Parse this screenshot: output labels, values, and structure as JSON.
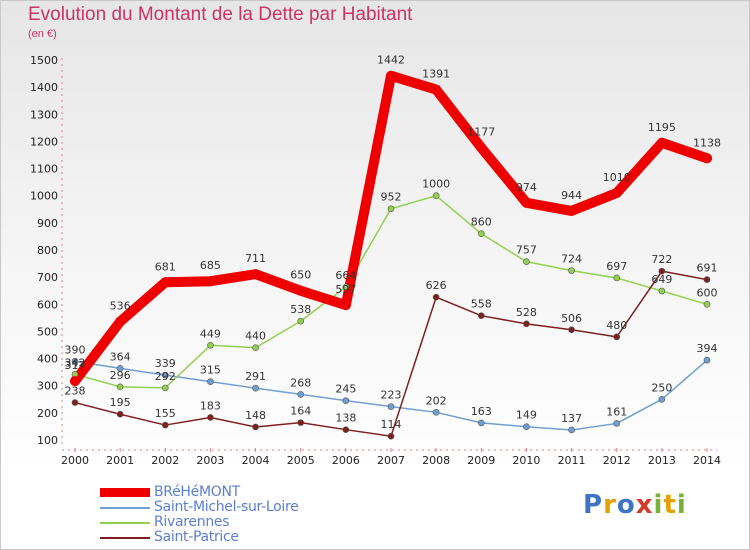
{
  "header": {
    "title": "Evolution du Montant de la Dette par Habitant",
    "subtitle": "(en €)"
  },
  "brand": {
    "name": "Proxiti",
    "letters": [
      {
        "ch": "P",
        "color": "#3f73c4"
      },
      {
        "ch": "r",
        "color": "#e5a100"
      },
      {
        "ch": "o",
        "color": "#3f73c4"
      },
      {
        "ch": "x",
        "color": "#d23a2a"
      },
      {
        "ch": "i",
        "color": "#79b13a"
      },
      {
        "ch": "t",
        "color": "#e5a100"
      },
      {
        "ch": "i",
        "color": "#79b13a"
      }
    ]
  },
  "chart_data": {
    "type": "line",
    "title": "Evolution du Montant de la Dette par Habitant",
    "subtitle": "(en €)",
    "xlabel": "",
    "ylabel": "",
    "x": [
      2000,
      2001,
      2002,
      2003,
      2004,
      2005,
      2006,
      2007,
      2008,
      2009,
      2010,
      2011,
      2012,
      2013,
      2014
    ],
    "ylim": [
      100,
      1500
    ],
    "yticks": [
      100,
      200,
      300,
      400,
      500,
      600,
      700,
      800,
      900,
      1000,
      1100,
      1200,
      1300,
      1400,
      1500
    ],
    "grid": false,
    "legend_position": "bottom-left",
    "series": [
      {
        "name": "BRéHéMONT",
        "color": "#ee0000",
        "emphasis": true,
        "values": [
          317,
          536,
          681,
          685,
          711,
          650,
          597,
          1442,
          1391,
          1177,
          974,
          944,
          1010,
          1195,
          1138
        ]
      },
      {
        "name": "Saint-Michel-sur-Loire",
        "color": "#6f9fd3",
        "emphasis": false,
        "values": [
          390,
          364,
          339,
          315,
          291,
          268,
          245,
          223,
          202,
          163,
          149,
          137,
          161,
          250,
          394
        ]
      },
      {
        "name": "Rivarennes",
        "color": "#92d050",
        "emphasis": false,
        "values": [
          342,
          296,
          292,
          449,
          440,
          538,
          664,
          952,
          1000,
          860,
          757,
          724,
          697,
          649,
          600
        ]
      },
      {
        "name": "Saint-Patrice",
        "color": "#7f2020",
        "emphasis": false,
        "values": [
          238,
          195,
          155,
          183,
          148,
          164,
          138,
          114,
          626,
          558,
          528,
          506,
          480,
          722,
          691
        ]
      }
    ],
    "data_labels": [
      [
        "317",
        "536",
        "681",
        "685",
        "711",
        "650",
        "597",
        "1442",
        "1391",
        "1177",
        "974",
        "944",
        "1010",
        "1195",
        "1138"
      ],
      [
        "390",
        "364",
        "339",
        "315",
        "291",
        "268",
        "245",
        "223",
        "202",
        "163",
        "149",
        "137",
        "161",
        "250",
        "394"
      ],
      [
        "342",
        "296",
        "292",
        "449",
        "440",
        "538",
        "664",
        "952",
        "1000",
        "860",
        "757",
        "724",
        "697",
        "649",
        "600"
      ],
      [
        "238",
        "195",
        "155",
        "183",
        "148",
        "164",
        "138",
        "114",
        "626",
        "558",
        "528",
        "506",
        "480",
        "722",
        "691"
      ]
    ]
  }
}
